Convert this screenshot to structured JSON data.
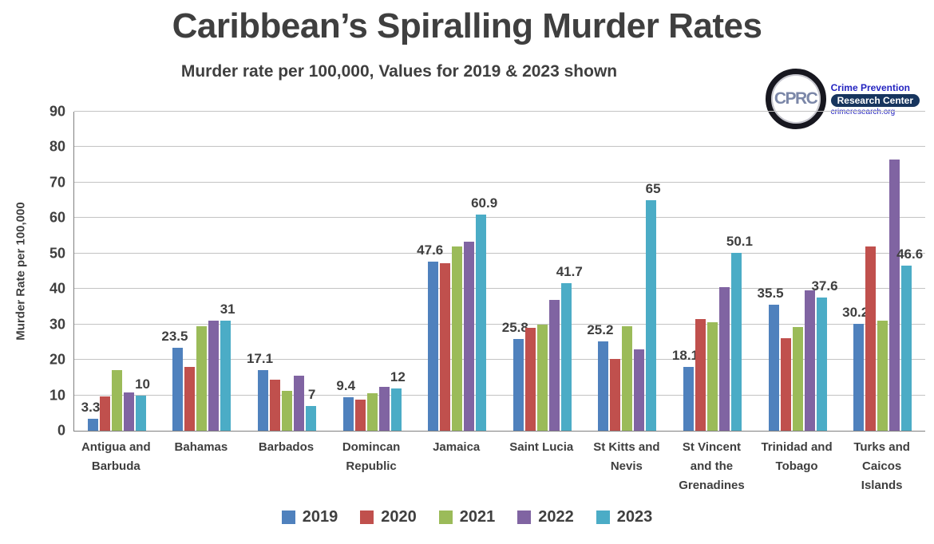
{
  "logo": {
    "monogram": "CPRC",
    "line1": "Crime Prevention",
    "line2": "Research Center",
    "line3": "crimeresearch.org"
  },
  "chart_data": {
    "type": "bar",
    "title": "Caribbean’s Spiralling Murder Rates",
    "subtitle": "Murder rate per 100,000, Values for 2019 & 2023 shown",
    "ylabel": "Murder Rate per 100,000",
    "ylim": [
      0,
      90
    ],
    "yticks": [
      0,
      10,
      20,
      30,
      40,
      50,
      60,
      70,
      80,
      90
    ],
    "grid": true,
    "legend_position": "bottom",
    "categories": [
      "Antigua and Barbuda",
      "Bahamas",
      "Barbados",
      "Domincan Republic",
      "Jamaica",
      "Saint Lucia",
      "St Kitts and Nevis",
      "St Vincent and the Grenadines",
      "Trinidad and Tobago",
      "Turks and Caicos Islands"
    ],
    "category_label_lines": [
      [
        "Antigua and",
        "Barbuda"
      ],
      [
        "Bahamas"
      ],
      [
        "Barbados"
      ],
      [
        "Domincan",
        "Republic"
      ],
      [
        "Jamaica"
      ],
      [
        "Saint Lucia"
      ],
      [
        "St Kitts and",
        "Nevis"
      ],
      [
        "St Vincent",
        "and the",
        "Grenadines"
      ],
      [
        "Trinidad and",
        "Tobago"
      ],
      [
        "Turks and",
        "Caicos",
        "Islands"
      ]
    ],
    "series": [
      {
        "name": "2019",
        "color": "#4F81BD",
        "values": [
          3.3,
          23.5,
          17.1,
          9.4,
          47.6,
          25.8,
          25.2,
          18.1,
          35.5,
          30.2
        ],
        "labels": [
          "3.3",
          "23.5",
          "17.1",
          "9.4",
          "47.6",
          "25.8",
          "25.2",
          "18.1",
          "35.5",
          "30.2"
        ]
      },
      {
        "name": "2020",
        "color": "#C0504D",
        "values": [
          9.7,
          18.0,
          14.5,
          8.8,
          47.3,
          29.0,
          20.2,
          31.4,
          26.2,
          51.9
        ],
        "labels": null
      },
      {
        "name": "2021",
        "color": "#9BBB59",
        "values": [
          17.0,
          29.5,
          11.2,
          10.5,
          52.0,
          30.0,
          29.5,
          30.5,
          29.3,
          31.0
        ],
        "labels": null
      },
      {
        "name": "2022",
        "color": "#8064A2",
        "values": [
          10.8,
          31.0,
          15.5,
          12.3,
          53.3,
          36.8,
          23.0,
          40.4,
          39.5,
          76.6
        ],
        "labels": null
      },
      {
        "name": "2023",
        "color": "#4BACC6",
        "values": [
          10,
          31,
          7,
          12,
          60.9,
          41.7,
          65,
          50.1,
          37.6,
          46.6
        ],
        "labels": [
          "10",
          "31",
          "7",
          "12",
          "60.9",
          "41.7",
          "65",
          "50.1",
          "37.6",
          "46.6"
        ]
      }
    ]
  }
}
